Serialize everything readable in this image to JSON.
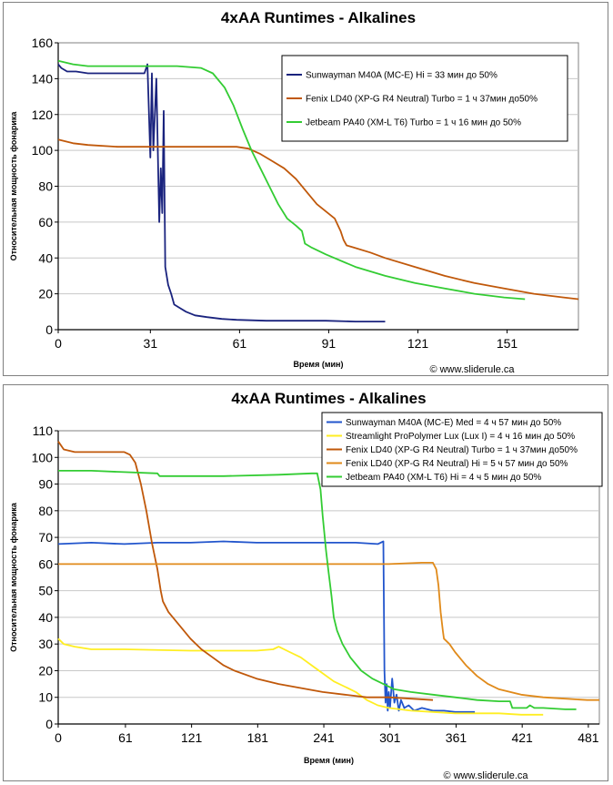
{
  "chart_data": [
    {
      "type": "line",
      "title": "4xAA Runtimes - Alkalines",
      "xlabel": "Время (мин)",
      "ylabel": "Относительная мощность фонарика",
      "source": "© www.sliderule.ca",
      "xlim": [
        0,
        175
      ],
      "ylim": [
        0,
        160
      ],
      "xticks": [
        "0",
        "31",
        "61",
        "91",
        "121",
        "151"
      ],
      "xtick_values": [
        0,
        31,
        61,
        91,
        121,
        151
      ],
      "yticks": [
        "0",
        "20",
        "40",
        "60",
        "80",
        "100",
        "120",
        "140",
        "160"
      ],
      "ytick_values": [
        0,
        20,
        40,
        60,
        80,
        100,
        120,
        140,
        160
      ],
      "grid": "horizontal",
      "legend_position": "top-right",
      "series": [
        {
          "name": "Sunwayman M40A (MC-E) Hi = 33 мин до 50%",
          "color": "#1a237e",
          "points": [
            [
              0,
              148
            ],
            [
              1,
              146
            ],
            [
              3,
              144
            ],
            [
              6,
              144
            ],
            [
              10,
              143
            ],
            [
              20,
              143
            ],
            [
              28,
              143
            ],
            [
              29,
              143
            ],
            [
              30,
              148
            ],
            [
              31,
              96
            ],
            [
              31.5,
              143
            ],
            [
              32,
              100
            ],
            [
              33,
              140
            ],
            [
              34,
              60
            ],
            [
              34.5,
              90
            ],
            [
              35,
              65
            ],
            [
              35.5,
              122
            ],
            [
              36,
              35
            ],
            [
              37,
              25
            ],
            [
              38,
              20
            ],
            [
              39,
              14
            ],
            [
              41,
              12
            ],
            [
              43,
              10
            ],
            [
              46,
              8
            ],
            [
              50,
              7
            ],
            [
              55,
              6
            ],
            [
              60,
              5.5
            ],
            [
              70,
              5
            ],
            [
              80,
              5
            ],
            [
              90,
              5
            ],
            [
              100,
              4.5
            ],
            [
              110,
              4.5
            ]
          ]
        },
        {
          "name": "Fenix LD40 (XP-G R4 Neutral) Turbo = 1 ч 37мин до50%",
          "color": "#c0580a",
          "points": [
            [
              0,
              106
            ],
            [
              5,
              104
            ],
            [
              10,
              103
            ],
            [
              20,
              102
            ],
            [
              40,
              102
            ],
            [
              60,
              102
            ],
            [
              64,
              101
            ],
            [
              68,
              98
            ],
            [
              72,
              94
            ],
            [
              76,
              90
            ],
            [
              80,
              84
            ],
            [
              84,
              76
            ],
            [
              87,
              70
            ],
            [
              90,
              66
            ],
            [
              93,
              62
            ],
            [
              95,
              55
            ],
            [
              96,
              50
            ],
            [
              97,
              47
            ],
            [
              99,
              46
            ],
            [
              105,
              43
            ],
            [
              110,
              40
            ],
            [
              120,
              35
            ],
            [
              130,
              30
            ],
            [
              140,
              26
            ],
            [
              150,
              23
            ],
            [
              160,
              20
            ],
            [
              170,
              18
            ],
            [
              175,
              17
            ]
          ]
        },
        {
          "name": "Jetbeam PA40 (XM-L T6) Turbo = 1 ч 16 мин до 50%",
          "color": "#33cc33",
          "points": [
            [
              0,
              150
            ],
            [
              5,
              148
            ],
            [
              10,
              147
            ],
            [
              20,
              147
            ],
            [
              40,
              147
            ],
            [
              48,
              146
            ],
            [
              52,
              143
            ],
            [
              56,
              135
            ],
            [
              59,
              125
            ],
            [
              62,
              112
            ],
            [
              65,
              100
            ],
            [
              68,
              90
            ],
            [
              71,
              80
            ],
            [
              74,
              70
            ],
            [
              77,
              62
            ],
            [
              80,
              58
            ],
            [
              82,
              55
            ],
            [
              83,
              48
            ],
            [
              85,
              46
            ],
            [
              90,
              42
            ],
            [
              100,
              35
            ],
            [
              110,
              30
            ],
            [
              120,
              26
            ],
            [
              130,
              23
            ],
            [
              140,
              20
            ],
            [
              150,
              18
            ],
            [
              157,
              17
            ]
          ]
        }
      ]
    },
    {
      "type": "line",
      "title": "4xAA Runtimes - Alkalines",
      "xlabel": "Время (мин)",
      "ylabel": "Относительная мощность фонарика",
      "source": "© www.sliderule.ca",
      "xlim": [
        0,
        491
      ],
      "ylim": [
        0,
        110
      ],
      "xticks": [
        "0",
        "61",
        "121",
        "181",
        "241",
        "301",
        "361",
        "421",
        "481"
      ],
      "xtick_values": [
        0,
        61,
        121,
        181,
        241,
        301,
        361,
        421,
        481
      ],
      "yticks": [
        "0",
        "10",
        "20",
        "30",
        "40",
        "50",
        "60",
        "70",
        "80",
        "90",
        "100",
        "110"
      ],
      "ytick_values": [
        0,
        10,
        20,
        30,
        40,
        50,
        60,
        70,
        80,
        90,
        100,
        110
      ],
      "grid": "horizontal",
      "legend_position": "top-right",
      "series": [
        {
          "name": "Sunwayman M40A (MC-E) Med = 4 ч 57 мин до 50%",
          "color": "#2255cc",
          "points": [
            [
              0,
              67.5
            ],
            [
              30,
              68
            ],
            [
              60,
              67.5
            ],
            [
              90,
              68
            ],
            [
              120,
              68
            ],
            [
              150,
              68.5
            ],
            [
              180,
              68
            ],
            [
              210,
              68
            ],
            [
              240,
              68
            ],
            [
              270,
              68
            ],
            [
              290,
              67.5
            ],
            [
              295,
              68.5
            ],
            [
              296,
              20
            ],
            [
              297,
              8
            ],
            [
              298,
              15
            ],
            [
              299,
              5
            ],
            [
              300,
              12
            ],
            [
              301,
              6
            ],
            [
              303,
              17
            ],
            [
              305,
              8
            ],
            [
              307,
              11
            ],
            [
              309,
              5
            ],
            [
              311,
              9
            ],
            [
              314,
              6
            ],
            [
              318,
              7
            ],
            [
              323,
              5
            ],
            [
              330,
              6
            ],
            [
              340,
              5
            ],
            [
              350,
              5
            ],
            [
              360,
              4.5
            ],
            [
              370,
              4.5
            ],
            [
              378,
              4.5
            ]
          ]
        },
        {
          "name": "Streamlight ProPolymer Lux (Lux I) = 4 ч 16 мин до 50%",
          "color": "#ffee22",
          "points": [
            [
              0,
              32
            ],
            [
              5,
              30
            ],
            [
              15,
              29
            ],
            [
              30,
              28
            ],
            [
              60,
              28
            ],
            [
              120,
              27.5
            ],
            [
              180,
              27.5
            ],
            [
              195,
              28
            ],
            [
              200,
              29
            ],
            [
              210,
              27
            ],
            [
              220,
              25
            ],
            [
              230,
              22
            ],
            [
              240,
              19
            ],
            [
              250,
              16
            ],
            [
              260,
              14
            ],
            [
              270,
              12
            ],
            [
              280,
              9
            ],
            [
              290,
              7
            ],
            [
              300,
              6
            ],
            [
              320,
              5
            ],
            [
              340,
              4.5
            ],
            [
              360,
              4
            ],
            [
              380,
              4
            ],
            [
              400,
              4
            ],
            [
              420,
              3.5
            ],
            [
              440,
              3.5
            ]
          ]
        },
        {
          "name": "Fenix LD40 (XP-G R4 Neutral) Turbo = 1 ч 37мин до50%",
          "color": "#c0580a",
          "points": [
            [
              0,
              106
            ],
            [
              5,
              103
            ],
            [
              15,
              102
            ],
            [
              30,
              102
            ],
            [
              60,
              102
            ],
            [
              65,
              101
            ],
            [
              70,
              98
            ],
            [
              75,
              90
            ],
            [
              80,
              80
            ],
            [
              85,
              68
            ],
            [
              90,
              58
            ],
            [
              93,
              50
            ],
            [
              95,
              46
            ],
            [
              100,
              42
            ],
            [
              110,
              37
            ],
            [
              120,
              32
            ],
            [
              130,
              28
            ],
            [
              140,
              25
            ],
            [
              150,
              22
            ],
            [
              160,
              20
            ],
            [
              180,
              17
            ],
            [
              200,
              15
            ],
            [
              220,
              13.5
            ],
            [
              240,
              12
            ],
            [
              260,
              11
            ],
            [
              280,
              10
            ],
            [
              300,
              10
            ],
            [
              320,
              9.5
            ],
            [
              340,
              9
            ]
          ]
        },
        {
          "name": "Fenix LD40 (XP-G R4 Neutral) Hi = 5 ч 57 мин до 50%",
          "color": "#e08a1a",
          "points": [
            [
              0,
              60
            ],
            [
              60,
              60
            ],
            [
              120,
              60
            ],
            [
              180,
              60
            ],
            [
              240,
              60
            ],
            [
              300,
              60
            ],
            [
              330,
              60.5
            ],
            [
              340,
              60.5
            ],
            [
              343,
              58
            ],
            [
              345,
              52
            ],
            [
              347,
              42
            ],
            [
              349,
              35
            ],
            [
              350,
              32
            ],
            [
              355,
              30
            ],
            [
              360,
              27
            ],
            [
              370,
              22
            ],
            [
              380,
              18
            ],
            [
              390,
              15
            ],
            [
              400,
              13
            ],
            [
              420,
              11
            ],
            [
              440,
              10
            ],
            [
              460,
              9.5
            ],
            [
              480,
              9
            ],
            [
              491,
              9
            ]
          ]
        },
        {
          "name": "Jetbeam PA40 (XM-L T6) Hi = 4 ч 5 мин до 50%",
          "color": "#33cc33",
          "points": [
            [
              0,
              95
            ],
            [
              30,
              95
            ],
            [
              60,
              94.5
            ],
            [
              90,
              94
            ],
            [
              92,
              93
            ],
            [
              100,
              93
            ],
            [
              150,
              93
            ],
            [
              200,
              93.5
            ],
            [
              230,
              94
            ],
            [
              235,
              94
            ],
            [
              238,
              88
            ],
            [
              240,
              78
            ],
            [
              243,
              65
            ],
            [
              245,
              58
            ],
            [
              248,
              48
            ],
            [
              250,
              40
            ],
            [
              253,
              35
            ],
            [
              258,
              30
            ],
            [
              265,
              25
            ],
            [
              275,
              20
            ],
            [
              285,
              17
            ],
            [
              295,
              15
            ],
            [
              305,
              13
            ],
            [
              320,
              12
            ],
            [
              340,
              11
            ],
            [
              360,
              10
            ],
            [
              380,
              9
            ],
            [
              400,
              8.5
            ],
            [
              410,
              8.5
            ],
            [
              412,
              6
            ],
            [
              420,
              6
            ],
            [
              425,
              6
            ],
            [
              428,
              7
            ],
            [
              432,
              6
            ],
            [
              440,
              6
            ],
            [
              460,
              5.5
            ],
            [
              470,
              5.5
            ]
          ]
        }
      ]
    }
  ]
}
